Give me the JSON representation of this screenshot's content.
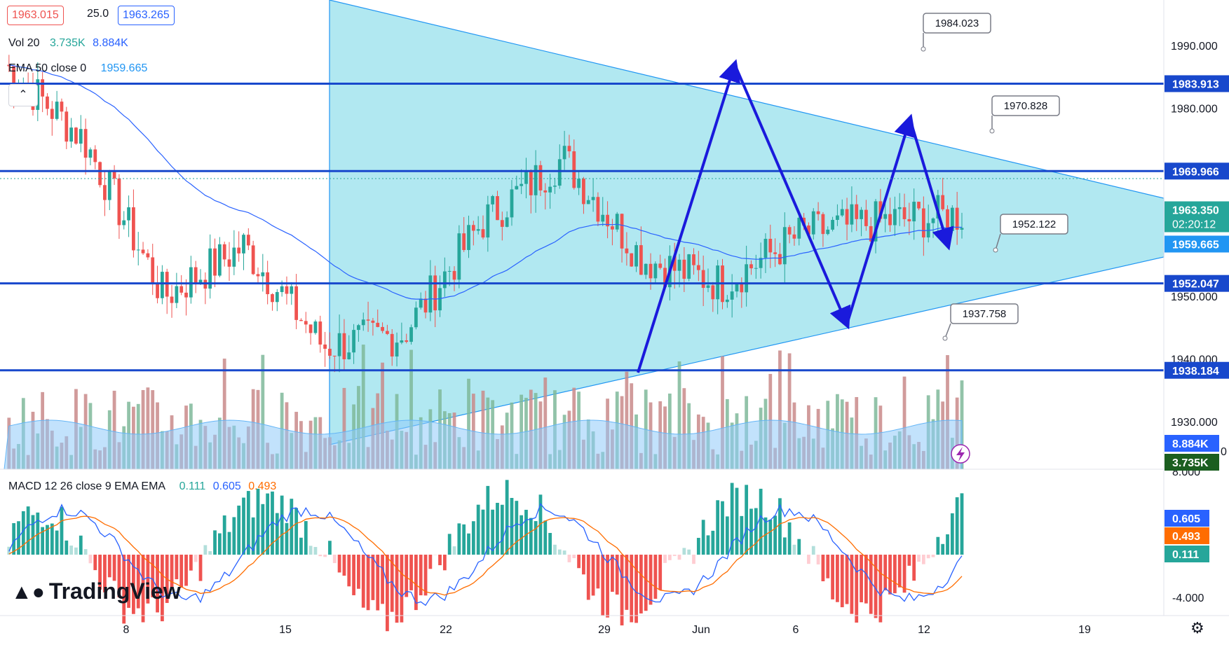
{
  "header": {
    "bid": "1963.015",
    "spread": "25.0",
    "ask": "1963.265",
    "volume_label": "Vol 20",
    "volume_value_1": "3.735K",
    "volume_value_2": "8.884K",
    "ema_label": "EMA 50 close 0",
    "ema_value": "1959.665",
    "macd_label": "MACD 12 26 close 9 EMA EMA",
    "macd_value": "0.111",
    "macd_signal_value": "0.605",
    "macd_hist_value": "0.493",
    "collapse_icon": "chevron-up-icon"
  },
  "brand": {
    "logo_text": "TradingView",
    "settings_icon": "gear-icon",
    "flash_icon": "lightning-icon"
  },
  "colors": {
    "up": "#26a69a",
    "down": "#ef5350",
    "level_line": "#1848cc",
    "triangle_fill": "#a8e6f0",
    "triangle_line": "#2196f3",
    "ema_line": "#2962ff",
    "arrow": "#1a1adc",
    "macd_line": "#2962ff",
    "signal_line": "#ff6d00"
  },
  "chart_data": {
    "type": "candlestick",
    "title": "",
    "price_axis": {
      "ticks": [
        "1990.000",
        "1980.000",
        "1950.000",
        "1940.000",
        "1930.000"
      ],
      "range": [
        1918,
        1993
      ]
    },
    "time_axis": {
      "ticks": [
        "8",
        "15",
        "22",
        "29",
        "Jun",
        "6",
        "12",
        "19"
      ]
    },
    "levels": [
      {
        "value": 1983.913,
        "label": "1983.913"
      },
      {
        "value": 1969.966,
        "label": "1969.966"
      },
      {
        "value": 1952.047,
        "label": "1952.047"
      },
      {
        "value": 1938.184,
        "label": "1938.184"
      }
    ],
    "callouts": [
      "1984.023",
      "1970.828",
      "1952.122",
      "1937.758"
    ],
    "current_price": {
      "value": 1963.35,
      "label": "1963.350",
      "countdown": "02:20:12"
    },
    "ema_price": {
      "value": 1959.665,
      "label": "1959.665"
    },
    "volume_tags": [
      "8.884K",
      "3.735K"
    ],
    "volume_axis_tick": "0",
    "macd_axis": {
      "ticks": [
        "8.000",
        "-4.000"
      ],
      "tags": [
        "0.605",
        "0.493",
        "0.111"
      ]
    },
    "price_path_key": [
      1987,
      1975,
      1950,
      1958,
      1942,
      1944,
      1962,
      1972,
      1956,
      1952,
      1960,
      1962,
      1963
    ],
    "volume_range": [
      0,
      9
    ],
    "macd_range": [
      -5,
      8
    ]
  }
}
